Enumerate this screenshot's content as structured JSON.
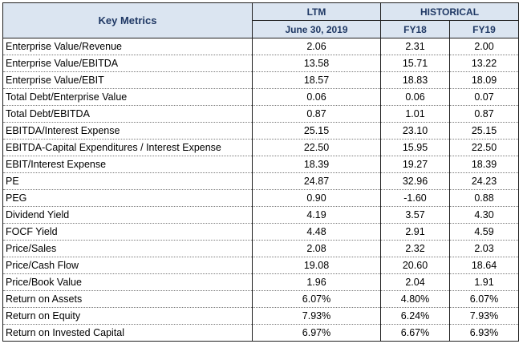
{
  "table": {
    "header": {
      "key_metrics": "Key Metrics",
      "ltm": "LTM",
      "historical": "HISTORICAL",
      "ltm_date": "June 30, 2019",
      "fy18": "FY18",
      "fy19": "FY19"
    },
    "rows": [
      {
        "metric": "Enterprise Value/Revenue",
        "ltm": "2.06",
        "fy18": "2.31",
        "fy19": "2.00"
      },
      {
        "metric": "Enterprise Value/EBITDA",
        "ltm": "13.58",
        "fy18": "15.71",
        "fy19": "13.22"
      },
      {
        "metric": "Enterprise Value/EBIT",
        "ltm": "18.57",
        "fy18": "18.83",
        "fy19": "18.09"
      },
      {
        "metric": "Total Debt/Enterprise Value",
        "ltm": "0.06",
        "fy18": "0.06",
        "fy19": "0.07"
      },
      {
        "metric": "Total Debt/EBITDA",
        "ltm": "0.87",
        "fy18": "1.01",
        "fy19": "0.87"
      },
      {
        "metric": "EBITDA/Interest Expense",
        "ltm": "25.15",
        "fy18": "23.10",
        "fy19": "25.15"
      },
      {
        "metric": "EBITDA-Capital Expenditures / Interest Expense",
        "ltm": "22.50",
        "fy18": "15.95",
        "fy19": "22.50"
      },
      {
        "metric": "EBIT/Interest Expense",
        "ltm": "18.39",
        "fy18": "19.27",
        "fy19": "18.39"
      },
      {
        "metric": "PE",
        "ltm": "24.87",
        "fy18": "32.96",
        "fy19": "24.23"
      },
      {
        "metric": "PEG",
        "ltm": "0.90",
        "fy18": "-1.60",
        "fy19": "0.88"
      },
      {
        "metric": "Dividend Yield",
        "ltm": "4.19",
        "fy18": "3.57",
        "fy19": "4.30"
      },
      {
        "metric": "FOCF Yield",
        "ltm": "4.48",
        "fy18": "2.91",
        "fy19": "4.59"
      },
      {
        "metric": "Price/Sales",
        "ltm": "2.08",
        "fy18": "2.32",
        "fy19": "2.03"
      },
      {
        "metric": "Price/Cash Flow",
        "ltm": "19.08",
        "fy18": "20.60",
        "fy19": "18.64"
      },
      {
        "metric": "Price/Book Value",
        "ltm": "1.96",
        "fy18": "2.04",
        "fy19": "1.91"
      },
      {
        "metric": "Return on Assets",
        "ltm": "6.07%",
        "fy18": "4.80%",
        "fy19": "6.07%"
      },
      {
        "metric": "Return on Equity",
        "ltm": "7.93%",
        "fy18": "6.24%",
        "fy19": "7.93%"
      },
      {
        "metric": "Return on Invested Capital",
        "ltm": "6.97%",
        "fy18": "6.67%",
        "fy19": "6.93%"
      }
    ]
  },
  "colors": {
    "header_bg": "#dbe5f1",
    "header_text": "#1f3864",
    "border": "#1f1f1f"
  }
}
